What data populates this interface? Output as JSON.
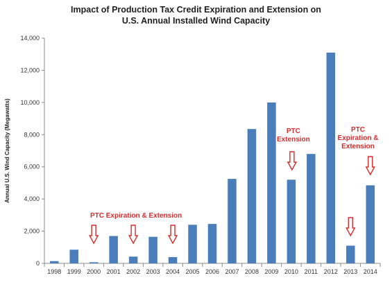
{
  "chart_data": {
    "type": "bar",
    "title": "Impact of Production Tax Credit Expiration and Extension on",
    "subtitle": "U.S. Annual Installed Wind Capacity",
    "xlabel": "",
    "ylabel": "Annual U.S. Wind Capacity (Megawatts)",
    "categories": [
      "1998",
      "1999",
      "2000",
      "2001",
      "2002",
      "2003",
      "2004",
      "2005",
      "2006",
      "2007",
      "2008",
      "2009",
      "2010",
      "2011",
      "2012",
      "2013",
      "2014"
    ],
    "values": [
      140,
      850,
      70,
      1700,
      420,
      1650,
      390,
      2400,
      2450,
      5250,
      8350,
      10000,
      5200,
      6800,
      13100,
      1100,
      4850
    ],
    "ylim": [
      0,
      14000
    ],
    "yticks": [
      0,
      2000,
      4000,
      6000,
      8000,
      10000,
      12000,
      14000
    ],
    "ytick_labels": [
      "0",
      "2,000",
      "4,000",
      "6,000",
      "8,000",
      "10,000",
      "12,000",
      "14,000"
    ],
    "grid": false,
    "legend": "none",
    "colors": {
      "bar": "#4a7ebb",
      "annotation": "#d62b2b",
      "axis": "#888888"
    },
    "annotations": [
      {
        "text_lines": [
          "PTC Expiration & Extension"
        ],
        "arrows_at": [
          "2000",
          "2002",
          "2004"
        ]
      },
      {
        "text_lines": [
          "PTC",
          "Extension"
        ],
        "arrows_at": [
          "2010"
        ]
      },
      {
        "text_lines": [
          "PTC",
          "Expiration &",
          "Extension"
        ],
        "arrows_at": [
          "2013",
          "2014"
        ]
      }
    ]
  }
}
